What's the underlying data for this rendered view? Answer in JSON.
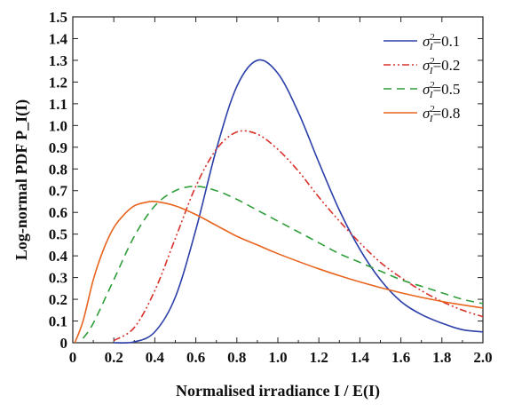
{
  "chart_data": {
    "type": "line",
    "xlabel": "Normalised irradiance I / E(I)",
    "ylabel": "Log-normal PDF P_I(I)",
    "xlim": [
      0,
      2.0
    ],
    "ylim": [
      0,
      1.5
    ],
    "x_ticks": [
      "0",
      "0.2",
      "0.4",
      "0.6",
      "0.8",
      "1.0",
      "1.2",
      "1.4",
      "1.6",
      "1.8",
      "2.0"
    ],
    "y_ticks": [
      "0",
      "0.1",
      "0.2",
      "0.3",
      "0.4",
      "0.5",
      "0.6",
      "0.7",
      "0.8",
      "0.9",
      "1.0",
      "1.1",
      "1.2",
      "1.3",
      "1.4",
      "1.5"
    ],
    "grid": false,
    "legend_position": "top-right",
    "series": [
      {
        "name": "σI²=0.1",
        "variance": 0.1,
        "color": "#2b3fa8",
        "dash": "solid",
        "x": [
          0.2,
          0.3,
          0.4,
          0.5,
          0.6,
          0.7,
          0.8,
          0.9,
          1.0,
          1.1,
          1.2,
          1.3,
          1.4,
          1.5,
          1.6,
          1.7,
          1.8,
          1.9,
          2.0
        ],
        "y": [
          0.0,
          0.004,
          0.05,
          0.21,
          0.52,
          0.89,
          1.18,
          1.3,
          1.24,
          1.06,
          0.83,
          0.61,
          0.43,
          0.29,
          0.19,
          0.13,
          0.09,
          0.06,
          0.05
        ]
      },
      {
        "name": "σI²=0.2",
        "variance": 0.2,
        "color": "#d8302a",
        "dash": "dash-dot-dot",
        "x": [
          0.2,
          0.3,
          0.4,
          0.5,
          0.6,
          0.7,
          0.8,
          0.9,
          1.0,
          1.1,
          1.2,
          1.3,
          1.4,
          1.5,
          1.6,
          1.7,
          1.8,
          1.9,
          2.0
        ],
        "y": [
          0.01,
          0.07,
          0.24,
          0.48,
          0.72,
          0.89,
          0.97,
          0.96,
          0.89,
          0.79,
          0.67,
          0.56,
          0.46,
          0.37,
          0.3,
          0.24,
          0.19,
          0.15,
          0.12
        ]
      },
      {
        "name": "σI²=0.5",
        "variance": 0.5,
        "color": "#2e9e3a",
        "dash": "dashed",
        "x": [
          0.05,
          0.1,
          0.2,
          0.3,
          0.4,
          0.5,
          0.6,
          0.7,
          0.8,
          0.9,
          1.0,
          1.1,
          1.2,
          1.3,
          1.4,
          1.5,
          1.6,
          1.7,
          1.8,
          1.9,
          2.0
        ],
        "y": [
          0.02,
          0.09,
          0.29,
          0.49,
          0.63,
          0.7,
          0.72,
          0.7,
          0.66,
          0.61,
          0.56,
          0.51,
          0.46,
          0.41,
          0.37,
          0.33,
          0.29,
          0.26,
          0.23,
          0.2,
          0.18
        ]
      },
      {
        "name": "σI²=0.8",
        "variance": 0.8,
        "color": "#e8641e",
        "dash": "solid",
        "x": [
          0.01,
          0.05,
          0.1,
          0.15,
          0.2,
          0.25,
          0.3,
          0.35,
          0.4,
          0.5,
          0.6,
          0.7,
          0.8,
          0.9,
          1.0,
          1.2,
          1.4,
          1.6,
          1.8,
          2.0
        ],
        "y": [
          0.0,
          0.1,
          0.29,
          0.43,
          0.53,
          0.59,
          0.63,
          0.645,
          0.65,
          0.63,
          0.59,
          0.54,
          0.49,
          0.45,
          0.41,
          0.34,
          0.28,
          0.23,
          0.19,
          0.16
        ]
      }
    ]
  }
}
